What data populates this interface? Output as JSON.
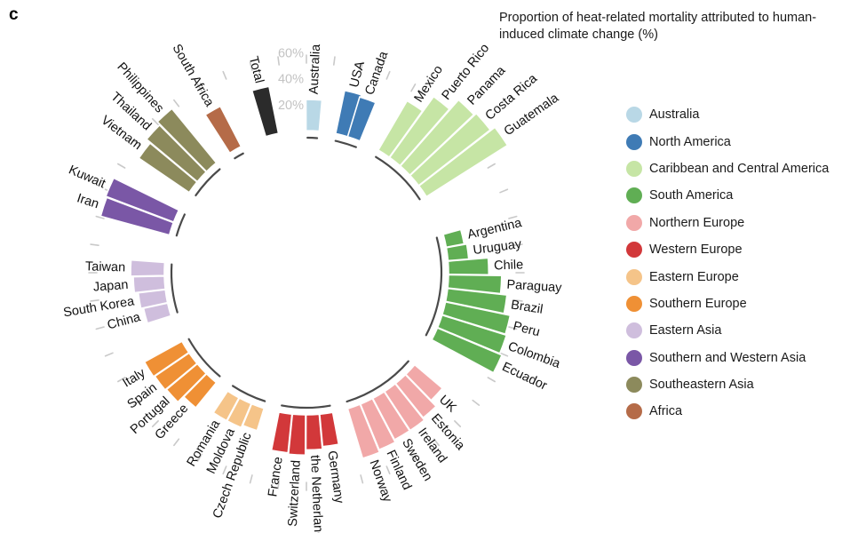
{
  "panel_label": "c",
  "chart_data": {
    "type": "bar",
    "layout": "circular",
    "title": "Proportion of heat-related mortality attributed to human-induced climate change (%)",
    "radial_ticks": [
      "20%",
      "40%",
      "60%"
    ],
    "radial_tick_values": [
      20,
      40,
      60
    ],
    "legend_position": "right",
    "groups": [
      {
        "name": "Australia",
        "color": "#b9d8e6"
      },
      {
        "name": "North America",
        "color": "#3f7bb5"
      },
      {
        "name": "Caribbean and Central America",
        "color": "#c6e5a5"
      },
      {
        "name": "South America",
        "color": "#60ae54"
      },
      {
        "name": "Northern Europe",
        "color": "#f1a8a8"
      },
      {
        "name": "Western Europe",
        "color": "#d2383a"
      },
      {
        "name": "Eastern Europe",
        "color": "#f5c489"
      },
      {
        "name": "Southern Europe",
        "color": "#ef9035"
      },
      {
        "name": "Eastern Asia",
        "color": "#cfbedd"
      },
      {
        "name": "Southern and Western Asia",
        "color": "#7a57a6"
      },
      {
        "name": "Southeastern Asia",
        "color": "#8c8a5c"
      },
      {
        "name": "Africa",
        "color": "#b56b48"
      }
    ],
    "categories": [
      {
        "label": "Australia",
        "group": 0,
        "value": 24
      },
      {
        "label": "USA",
        "group": 1,
        "value": 34
      },
      {
        "label": "Canada",
        "group": 1,
        "value": 32
      },
      {
        "label": "Mexico",
        "group": 2,
        "value": 44
      },
      {
        "label": "Puerto Rico",
        "group": 2,
        "value": 58
      },
      {
        "label": "Panama",
        "group": 2,
        "value": 68
      },
      {
        "label": "Costa Rica",
        "group": 2,
        "value": 70
      },
      {
        "label": "Guatemala",
        "group": 2,
        "value": 74
      },
      {
        "label": "Argentina",
        "group": 3,
        "value": 14
      },
      {
        "label": "Uruguay",
        "group": 3,
        "value": 16
      },
      {
        "label": "Chile",
        "group": 3,
        "value": 31
      },
      {
        "label": "Paraguay",
        "group": 3,
        "value": 41
      },
      {
        "label": "Brazil",
        "group": 3,
        "value": 46
      },
      {
        "label": "Peru",
        "group": 3,
        "value": 51
      },
      {
        "label": "Colombia",
        "group": 3,
        "value": 52
      },
      {
        "label": "Ecuador",
        "group": 3,
        "value": 54
      },
      {
        "label": "UK",
        "group": 4,
        "value": 28
      },
      {
        "label": "Estonia",
        "group": 4,
        "value": 34
      },
      {
        "label": "Ireland",
        "group": 4,
        "value": 36
      },
      {
        "label": "Sweden",
        "group": 4,
        "value": 36
      },
      {
        "label": "Finland",
        "group": 4,
        "value": 38
      },
      {
        "label": "Norway",
        "group": 4,
        "value": 40
      },
      {
        "label": "France",
        "group": 5,
        "value": 30
      },
      {
        "label": "Switzerland",
        "group": 5,
        "value": 31
      },
      {
        "label": "the Netherlands",
        "group": 5,
        "value": 27
      },
      {
        "label": "Germany",
        "group": 5,
        "value": 25
      },
      {
        "label": "Romania",
        "group": 6,
        "value": 20
      },
      {
        "label": "Moldova",
        "group": 6,
        "value": 20
      },
      {
        "label": "Czech Republic",
        "group": 6,
        "value": 18
      },
      {
        "label": "Italy",
        "group": 7,
        "value": 33
      },
      {
        "label": "Spain",
        "group": 7,
        "value": 32
      },
      {
        "label": "Portugal",
        "group": 7,
        "value": 31
      },
      {
        "label": "Greece",
        "group": 7,
        "value": 25
      },
      {
        "label": "China",
        "group": 8,
        "value": 19
      },
      {
        "label": "South Korea",
        "group": 8,
        "value": 21
      },
      {
        "label": "Japan",
        "group": 8,
        "value": 24
      },
      {
        "label": "Taiwan",
        "group": 8,
        "value": 26
      },
      {
        "label": "Iran",
        "group": 9,
        "value": 55
      },
      {
        "label": "Kuwait",
        "group": 9,
        "value": 56
      },
      {
        "label": "Vietnam",
        "group": 10,
        "value": 47
      },
      {
        "label": "Thailand",
        "group": 10,
        "value": 51
      },
      {
        "label": "Philippines",
        "group": 10,
        "value": 54
      },
      {
        "label": "South Africa",
        "group": 11,
        "value": 35
      },
      {
        "label": "Total",
        "group": -1,
        "value": 37
      }
    ]
  }
}
